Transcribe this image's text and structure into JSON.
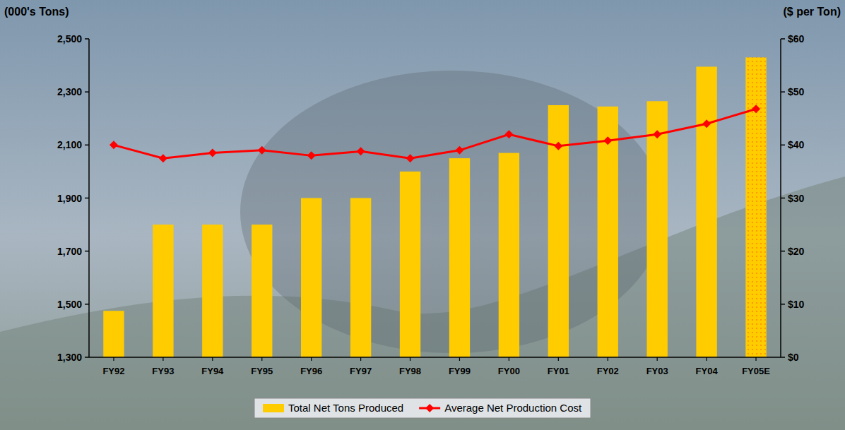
{
  "chart_data": {
    "type": "bar",
    "y_label": "(000's Tons)",
    "y2_label": "($ per Ton)",
    "categories": [
      "FY92",
      "FY93",
      "FY94",
      "FY95",
      "FY96",
      "FY97",
      "FY98",
      "FY99",
      "FY00",
      "FY01",
      "FY02",
      "FY03",
      "FY04",
      "FY05E"
    ],
    "series": [
      {
        "name": "Total Net Tons Produced",
        "type": "bar",
        "color": "#ffcc00",
        "values": [
          1475,
          1800,
          1800,
          1800,
          1900,
          1900,
          2000,
          2050,
          2070,
          2250,
          2245,
          2265,
          2395,
          2430
        ]
      },
      {
        "name": "Average Net Production Cost",
        "type": "line",
        "axis": "y2",
        "color": "#ff0000",
        "marker": "diamond",
        "line_style": "solid",
        "values": [
          40,
          37.5,
          38.5,
          39,
          38,
          38.8,
          37.5,
          39,
          42,
          39.8,
          40.8,
          42,
          44,
          46.8
        ]
      }
    ],
    "ylim": [
      1300,
      2500
    ],
    "yticks": [
      {
        "value": 1300,
        "label": "1,300"
      },
      {
        "value": 1500,
        "label": "1,500"
      },
      {
        "value": 1700,
        "label": "1,700"
      },
      {
        "value": 1900,
        "label": "1,900"
      },
      {
        "value": 2100,
        "label": "2,100"
      },
      {
        "value": 2300,
        "label": "2,300"
      },
      {
        "value": 2500,
        "label": "2,500"
      }
    ],
    "y2lim": [
      0,
      60
    ],
    "y2ticks": [
      {
        "value": 0,
        "label": "$0"
      },
      {
        "value": 10,
        "label": "$10"
      },
      {
        "value": 20,
        "label": "$20"
      },
      {
        "value": 30,
        "label": "$30"
      },
      {
        "value": 40,
        "label": "$40"
      },
      {
        "value": 50,
        "label": "$50"
      },
      {
        "value": 60,
        "label": "$60"
      }
    ],
    "grid": false,
    "legend": "bottom"
  }
}
